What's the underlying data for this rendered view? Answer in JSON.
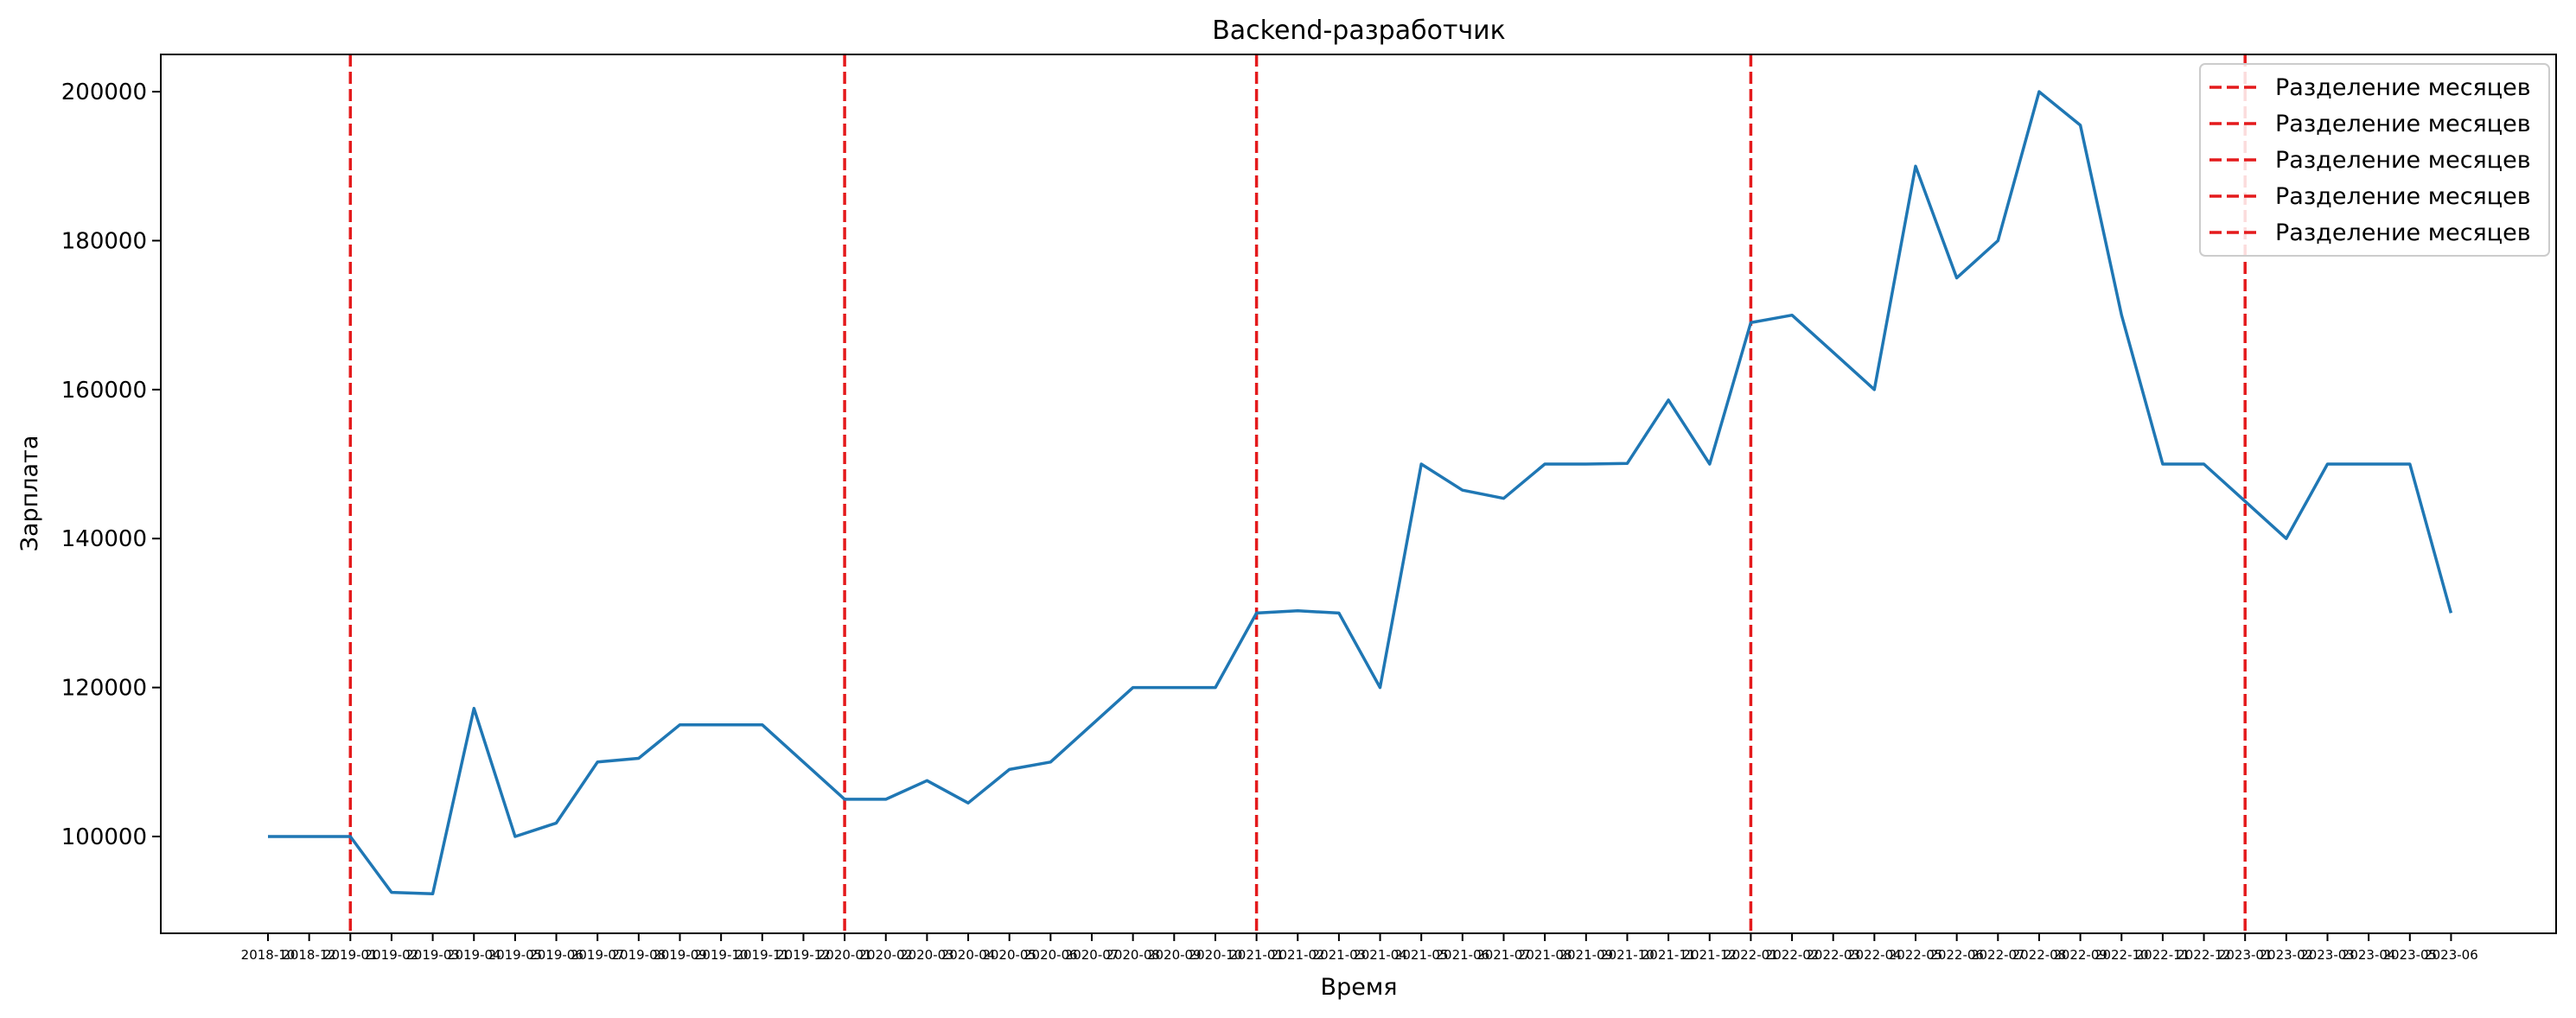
{
  "chart_data": {
    "type": "line",
    "title": "Backend-разработчик",
    "xlabel": "Время",
    "ylabel": "Зарплата",
    "ylim": [
      87000,
      205000
    ],
    "yticks": [
      100000,
      120000,
      140000,
      160000,
      180000,
      200000
    ],
    "x": [
      "2018-10",
      "2018-12",
      "2019-01",
      "2019-02",
      "2019-03",
      "2019-04",
      "2019-05",
      "2019-06",
      "2019-07",
      "2019-08",
      "2019-09",
      "2019-10",
      "2019-11",
      "2019-12",
      "2020-01",
      "2020-02",
      "2020-03",
      "2020-04",
      "2020-05",
      "2020-06",
      "2020-07",
      "2020-08",
      "2020-09",
      "2020-10",
      "2021-01",
      "2021-02",
      "2021-03",
      "2021-04",
      "2021-05",
      "2021-06",
      "2021-07",
      "2021-08",
      "2021-09",
      "2021-10",
      "2021-11",
      "2021-12",
      "2022-01",
      "2022-02",
      "2022-03",
      "2022-04",
      "2022-05",
      "2022-06",
      "2022-07",
      "2022-08",
      "2022-09",
      "2022-10",
      "2022-11",
      "2022-12",
      "2023-01",
      "2023-02",
      "2023-03",
      "2023-04",
      "2023-05",
      "2023-06"
    ],
    "series": [
      {
        "values": [
          100000,
          100000,
          100000,
          92500,
          92300,
          117200,
          100000,
          101800,
          110000,
          110500,
          115000,
          115000,
          115000,
          110000,
          105000,
          105000,
          107500,
          104500,
          109000,
          110000,
          115000,
          120000,
          120000,
          120000,
          130000,
          130300,
          130000,
          120000,
          150000,
          146500,
          145400,
          150000,
          150000,
          150100,
          158600,
          150000,
          169000,
          170000,
          165000,
          160000,
          190000,
          175000,
          180000,
          200000,
          195500,
          170000,
          150000,
          150000,
          145000,
          140000,
          150000,
          150000,
          150000,
          130000
        ],
        "color": "#1f77b4"
      }
    ],
    "vlines": {
      "positions": [
        "2019-01",
        "2020-01",
        "2021-01",
        "2022-01",
        "2023-01"
      ],
      "color": "#e41a1c",
      "label": "Разделение месяцев"
    },
    "legend": {
      "placement": "top-right",
      "entries": [
        "Разделение месяцев",
        "Разделение месяцев",
        "Разделение месяцев",
        "Разделение месяцев",
        "Разделение месяцев"
      ]
    },
    "grid": false
  }
}
